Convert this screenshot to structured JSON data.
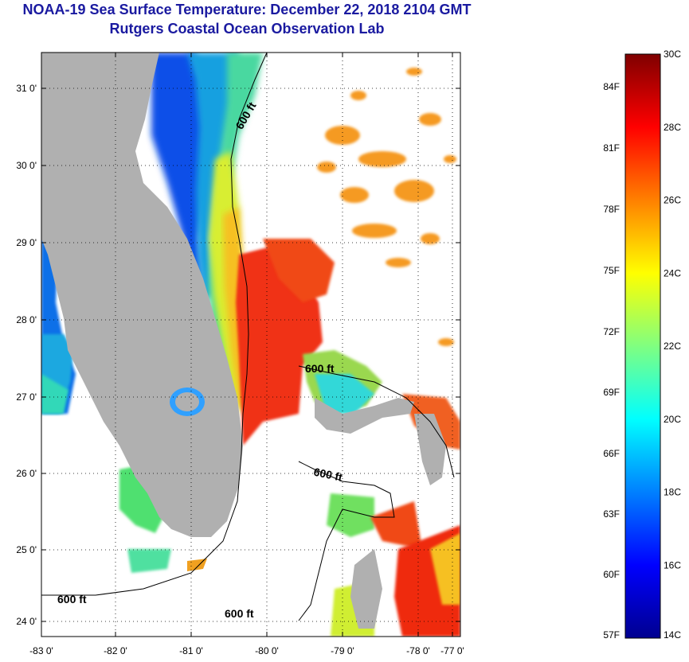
{
  "header": {
    "title": "NOAA-19 Sea Surface Temperature:  December 22, 2018 2104 GMT",
    "subtitle": "Rutgers Coastal Ocean Observation Lab"
  },
  "map": {
    "lat_ticks": [
      "31 0'",
      "30 0'",
      "29 0'",
      "28 0'",
      "27 0'",
      "26 0'",
      "25 0'",
      "24 0'"
    ],
    "lon_ticks": [
      "-83 0'",
      "-82 0'",
      "-81 0'",
      "-80 0'",
      "-79 0'",
      "-78 0'",
      "-77 0'"
    ],
    "isobath_label": "600 ft",
    "colors": {
      "land": "#b0b0b0",
      "no_data": "#ffffff"
    }
  },
  "colorbar": {
    "celsius": [
      "30C",
      "28C",
      "26C",
      "24C",
      "22C",
      "20C",
      "18C",
      "16C",
      "14C"
    ],
    "fahrenheit": [
      "84F",
      "81F",
      "78F",
      "75F",
      "72F",
      "69F",
      "66F",
      "63F",
      "60F",
      "57F"
    ],
    "gradient": [
      "#7f0000",
      "#ff0000",
      "#ff8000",
      "#ffff00",
      "#80ff80",
      "#00ffff",
      "#0080ff",
      "#0000ff",
      "#00008f"
    ]
  }
}
